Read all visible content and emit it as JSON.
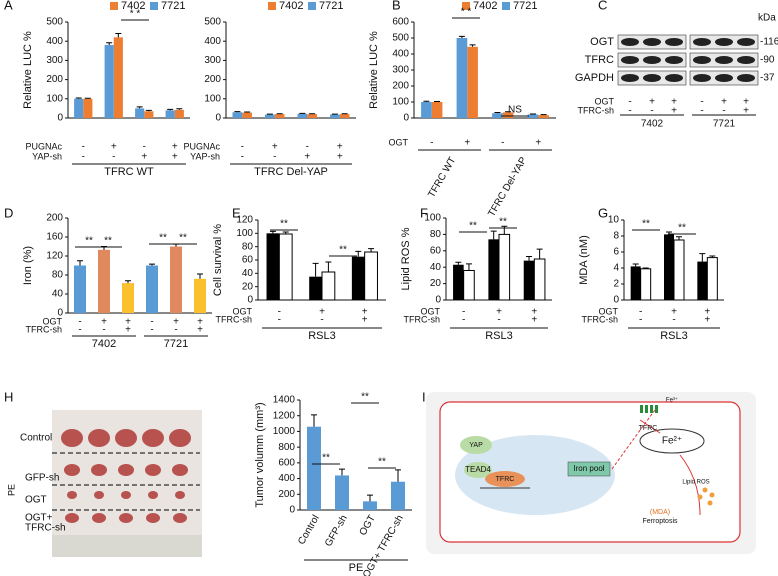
{
  "panel_labels": [
    "A",
    "B",
    "C",
    "D",
    "E",
    "F",
    "G",
    "H",
    "I"
  ],
  "chart_data": [
    {
      "type": "bar",
      "y_label": "Relative LUC %",
      "ylim": [
        0,
        500
      ],
      "yticks": [
        0,
        100,
        200,
        300,
        400,
        500
      ],
      "series": [
        {
          "name": "7402",
          "color": "#ed7d31",
          "values": [
            100,
            420,
            35,
            42
          ],
          "errors": [
            3,
            20,
            5,
            6
          ]
        },
        {
          "name": "7721",
          "color": "#5b9bd5",
          "values": [
            100,
            380,
            50,
            40
          ],
          "errors": [
            4,
            12,
            8,
            5
          ]
        }
      ],
      "conditions": [
        {
          "name": "PUGNAc",
          "marks": [
            "-",
            "+",
            "-",
            "+"
          ]
        },
        {
          "name": "YAP-sh",
          "marks": [
            "-",
            "-",
            "+",
            "+"
          ]
        }
      ],
      "group_labels": [
        "TFRC WT"
      ],
      "annotations": [
        "* *"
      ]
    },
    {
      "type": "bar",
      "ylim": [
        0,
        500
      ],
      "yticks": [
        0,
        100,
        200,
        300,
        400,
        500
      ],
      "series": [
        {
          "name": "7402",
          "color": "#ed7d31",
          "values": [
            28,
            20,
            20,
            20
          ],
          "errors": [
            3,
            2,
            2,
            2
          ]
        },
        {
          "name": "7721",
          "color": "#5b9bd5",
          "values": [
            30,
            18,
            22,
            18
          ],
          "errors": [
            3,
            2,
            2,
            2
          ]
        }
      ],
      "conditions": [
        {
          "name": "PUGNAc",
          "marks": [
            "-",
            "+",
            "-",
            "+"
          ]
        },
        {
          "name": "YAP-sh",
          "marks": [
            "-",
            "-",
            "+",
            "+"
          ]
        }
      ],
      "group_labels": [
        "TFRC Del-YAP"
      ],
      "annotations": []
    },
    {
      "type": "bar",
      "y_label": "Relative LUC %",
      "ylim": [
        0,
        600
      ],
      "yticks": [
        0,
        100,
        200,
        300,
        400,
        500,
        600
      ],
      "series": [
        {
          "name": "7402",
          "color": "#ed7d31",
          "values": [
            100,
            445,
            35,
            18
          ],
          "errors": [
            3,
            12,
            4,
            3
          ]
        },
        {
          "name": "7721",
          "color": "#5b9bd5",
          "values": [
            100,
            500,
            30,
            22
          ],
          "errors": [
            5,
            10,
            4,
            3
          ]
        }
      ],
      "conditions": [
        {
          "name": "OGT",
          "marks": [
            "-",
            "+",
            "-",
            "+"
          ]
        }
      ],
      "group_labels": [
        "TFRC WT",
        "TFRC Del-YAP"
      ],
      "annotations": [
        "* *",
        "NS"
      ]
    },
    {
      "type": "bar",
      "y_label": "Iron (%)",
      "ylim": [
        0,
        200
      ],
      "yticks": [
        0,
        40,
        80,
        120,
        160,
        200
      ],
      "series": [
        {
          "color": [
            "#5b9bd5",
            "#e0895e",
            "#fbc02d",
            "#5b9bd5",
            "#e0895e",
            "#fbc02d"
          ],
          "values": [
            100,
            133,
            63,
            100,
            140,
            72
          ],
          "errors": [
            10,
            7,
            5,
            3,
            5,
            10
          ]
        }
      ],
      "conditions": [
        {
          "name": "OGT",
          "marks": [
            "-",
            "+",
            "+",
            "-",
            "+",
            "+"
          ]
        },
        {
          "name": "TFRC-sh",
          "marks": [
            "-",
            "-",
            "+",
            "-",
            "-",
            "+"
          ]
        }
      ],
      "group_labels": [
        "7402",
        "7721"
      ],
      "annotations": [
        "**",
        "**",
        "**",
        "**"
      ]
    },
    {
      "type": "bar",
      "y_label": "Cell survival %",
      "ylim": [
        0,
        120
      ],
      "yticks": [
        0,
        20,
        40,
        60,
        80,
        100,
        120
      ],
      "series": [
        {
          "color": "#000000",
          "values": [
            100,
            35,
            65
          ],
          "errors": [
            3,
            20,
            8
          ]
        },
        {
          "color": "#ffffff",
          "values": [
            99,
            42,
            72
          ],
          "errors": [
            3,
            15,
            5
          ]
        }
      ],
      "conditions": [
        {
          "name": "OGT",
          "marks": [
            "-",
            "+",
            "+"
          ]
        },
        {
          "name": "TFRC-sh",
          "marks": [
            "-",
            "-",
            "+"
          ]
        }
      ],
      "group_labels": [
        "RSL3"
      ],
      "annotations": [
        "**",
        "**"
      ]
    },
    {
      "type": "bar",
      "y_label": "Lipid ROS %",
      "ylim": [
        0,
        100
      ],
      "yticks": [
        0,
        20,
        40,
        60,
        80,
        100
      ],
      "series": [
        {
          "color": "#000000",
          "values": [
            43,
            74,
            48
          ],
          "errors": [
            3,
            10,
            5
          ]
        },
        {
          "color": "#ffffff",
          "values": [
            36,
            80,
            50
          ],
          "errors": [
            8,
            10,
            12
          ]
        }
      ],
      "conditions": [
        {
          "name": "OGT",
          "marks": [
            "-",
            "+",
            "+"
          ]
        },
        {
          "name": "TFRC-sh",
          "marks": [
            "-",
            "-",
            "+"
          ]
        }
      ],
      "group_labels": [
        "RSL3"
      ],
      "annotations": [
        "**",
        "**"
      ]
    },
    {
      "type": "bar",
      "y_label": "MDA (nM)",
      "ylim": [
        0,
        10
      ],
      "yticks": [
        0,
        2,
        4,
        6,
        8,
        10
      ],
      "series": [
        {
          "color": "#000000",
          "values": [
            4.2,
            8.2,
            4.8
          ],
          "errors": [
            0.3,
            0.3,
            1
          ]
        },
        {
          "color": "#ffffff",
          "values": [
            3.9,
            7.5,
            5.3
          ],
          "errors": [
            0.1,
            0.4,
            0.2
          ]
        }
      ],
      "conditions": [
        {
          "name": "OGT",
          "marks": [
            "-",
            "+",
            "+"
          ]
        },
        {
          "name": "TFRC-sh",
          "marks": [
            "-",
            "-",
            "+"
          ]
        }
      ],
      "group_labels": [
        "RSL3"
      ],
      "annotations": [
        "**",
        "**"
      ]
    },
    {
      "type": "bar",
      "y_label": "Tumor volumm (mm³)",
      "ylim": [
        0,
        1400
      ],
      "yticks": [
        0,
        200,
        400,
        600,
        800,
        1000,
        1200,
        1400
      ],
      "categories": [
        "Control",
        "GFP-sh",
        "OGT",
        "OGT+ TFRC-sh"
      ],
      "series": [
        {
          "color": "#5b9bd5",
          "values": [
            1060,
            440,
            110,
            360
          ],
          "errors": [
            150,
            80,
            80,
            150
          ]
        }
      ],
      "conditions": [],
      "group_labels": [
        "PE"
      ],
      "annotations": [
        "**",
        "**",
        "**"
      ]
    }
  ],
  "blot": {
    "kda_title": "kDa",
    "rows": [
      "OGT",
      "TFRC",
      "GAPDH"
    ],
    "kda": [
      "-116",
      "-90",
      "-37"
    ],
    "conditions": [
      {
        "name": "OGT",
        "marks": [
          "-",
          "+",
          "+",
          "-",
          "+",
          "+"
        ]
      },
      {
        "name": "TFRC-sh",
        "marks": [
          "-",
          "-",
          "+",
          "-",
          "-",
          "+"
        ]
      }
    ],
    "groups": [
      "7402",
      "7721"
    ]
  },
  "photo": {
    "rows": [
      "Control",
      "GFP-sh",
      "OGT",
      "OGT+",
      "TFRC-sh"
    ],
    "side": "PE"
  },
  "diagram": {
    "labels": [
      "TFRC",
      "Fe³⁺",
      "YAP",
      "TEAD4",
      "TFRC",
      "Iron pool",
      "Fe²⁺",
      "Lipid ROS",
      "(MDA)",
      "Ferroptosis"
    ]
  }
}
